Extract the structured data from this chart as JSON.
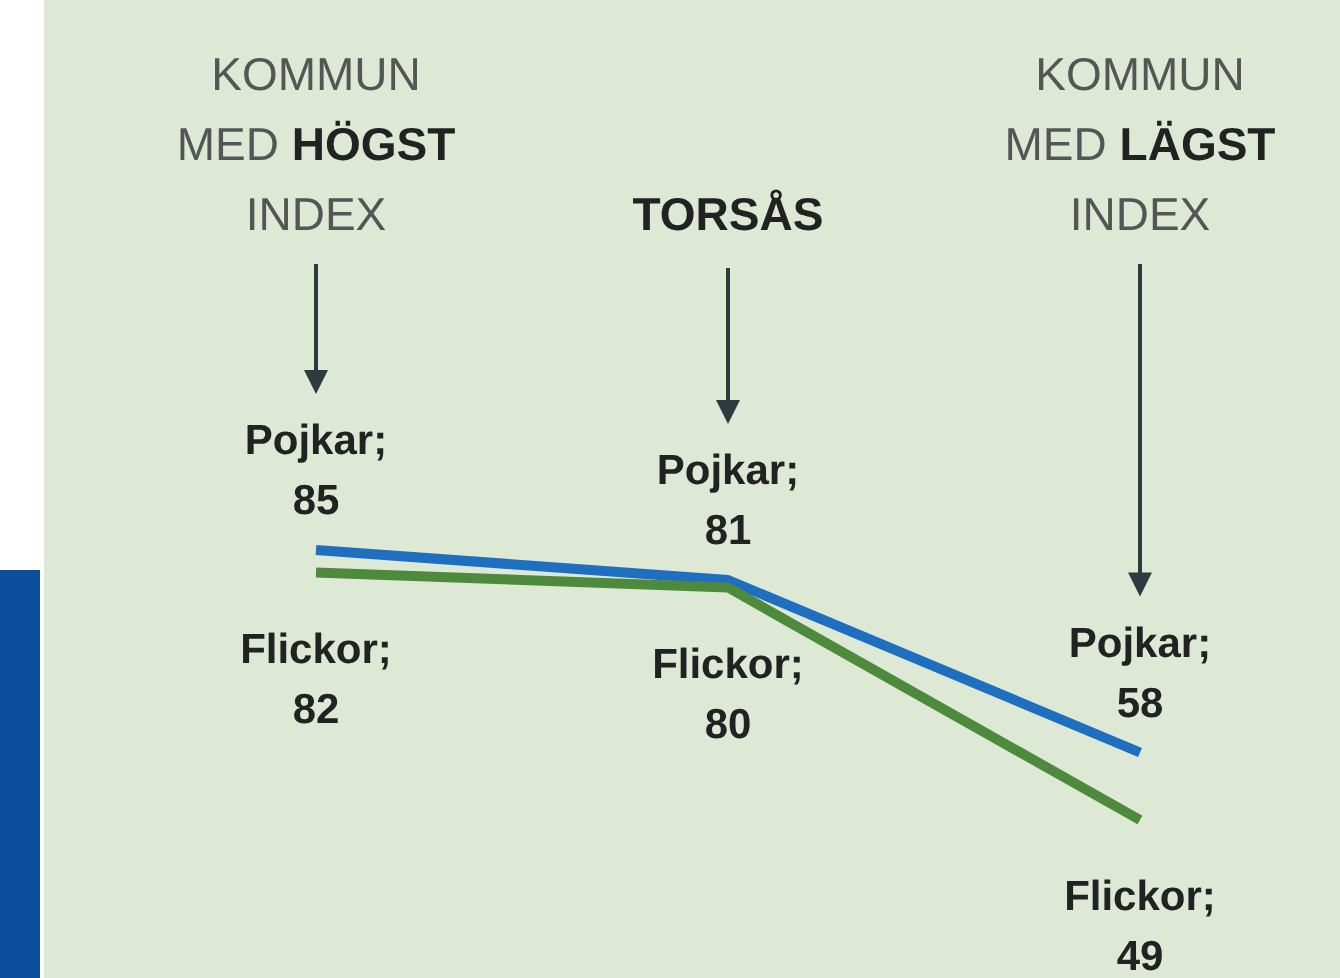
{
  "chart_data": {
    "type": "line",
    "categories": [
      "KOMMUN MED HÖGST INDEX",
      "TORSÅS",
      "KOMMUN MED LÄGST INDEX"
    ],
    "series": [
      {
        "name": "Pojkar;",
        "color": "#1f6fc0",
        "values": [
          85,
          81,
          58
        ]
      },
      {
        "name": "Flickor;",
        "color": "#4e8a3c",
        "values": [
          82,
          80,
          49
        ]
      }
    ],
    "data_labels": true,
    "marker": "none",
    "line_style": "solid",
    "relative": false
  }
}
